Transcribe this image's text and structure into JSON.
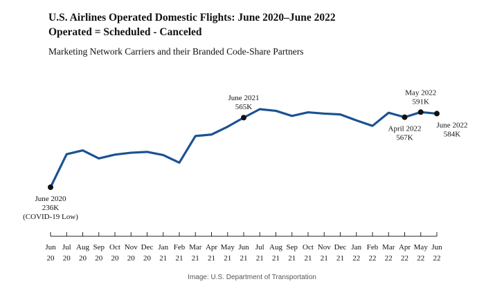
{
  "header": {
    "title_line1": "U.S. Airlines Operated Domestic Flights: June 2020–June 2022",
    "title_line2": "Operated = Scheduled - Canceled",
    "subtitle": "Marketing Network Carriers and their Branded Code-Share Partners"
  },
  "footer": {
    "source": "Image: U.S. Department of Transportation"
  },
  "chart_data": {
    "type": "line",
    "title": "U.S. Airlines Operated Domestic Flights: June 2020–June 2022",
    "subtitle": "Operated = Scheduled - Canceled",
    "xlabel": "",
    "ylabel": "",
    "grid": false,
    "legend": "none",
    "line_color": "#1a5292",
    "categories": [
      {
        "month": "Jun",
        "year": "20"
      },
      {
        "month": "Jul",
        "year": "20"
      },
      {
        "month": "Aug",
        "year": "20"
      },
      {
        "month": "Sep",
        "year": "20"
      },
      {
        "month": "Oct",
        "year": "20"
      },
      {
        "month": "Nov",
        "year": "20"
      },
      {
        "month": "Dec",
        "year": "20"
      },
      {
        "month": "Jan",
        "year": "21"
      },
      {
        "month": "Feb",
        "year": "21"
      },
      {
        "month": "Mar",
        "year": "21"
      },
      {
        "month": "Apr",
        "year": "21"
      },
      {
        "month": "May",
        "year": "21"
      },
      {
        "month": "Jun",
        "year": "21"
      },
      {
        "month": "Jul",
        "year": "21"
      },
      {
        "month": "Aug",
        "year": "21"
      },
      {
        "month": "Sep",
        "year": "21"
      },
      {
        "month": "Oct",
        "year": "21"
      },
      {
        "month": "Nov",
        "year": "21"
      },
      {
        "month": "Dec",
        "year": "21"
      },
      {
        "month": "Jan",
        "year": "22"
      },
      {
        "month": "Feb",
        "year": "22"
      },
      {
        "month": "Mar",
        "year": "22"
      },
      {
        "month": "Apr",
        "year": "22"
      },
      {
        "month": "May",
        "year": "22"
      },
      {
        "month": "Jun",
        "year": "22"
      }
    ],
    "values_thousands": [
      236,
      392,
      410,
      372,
      390,
      399,
      403,
      388,
      352,
      478,
      485,
      522,
      565,
      605,
      597,
      573,
      590,
      584,
      580,
      552,
      526,
      588,
      567,
      591,
      584
    ],
    "ylim": [
      200,
      640
    ],
    "annotations": [
      {
        "index": 0,
        "lines": [
          "June 2020",
          "236K",
          "(COVID-19 Low)"
        ],
        "position": "below"
      },
      {
        "index": 12,
        "lines": [
          "June 2021",
          "565K"
        ],
        "position": "above"
      },
      {
        "index": 22,
        "lines": [
          "April 2022",
          "567K"
        ],
        "position": "below"
      },
      {
        "index": 23,
        "lines": [
          "May 2022",
          "591K"
        ],
        "position": "above"
      },
      {
        "index": 24,
        "lines": [
          "June 2022",
          "584K"
        ],
        "position": "below-right"
      }
    ]
  }
}
